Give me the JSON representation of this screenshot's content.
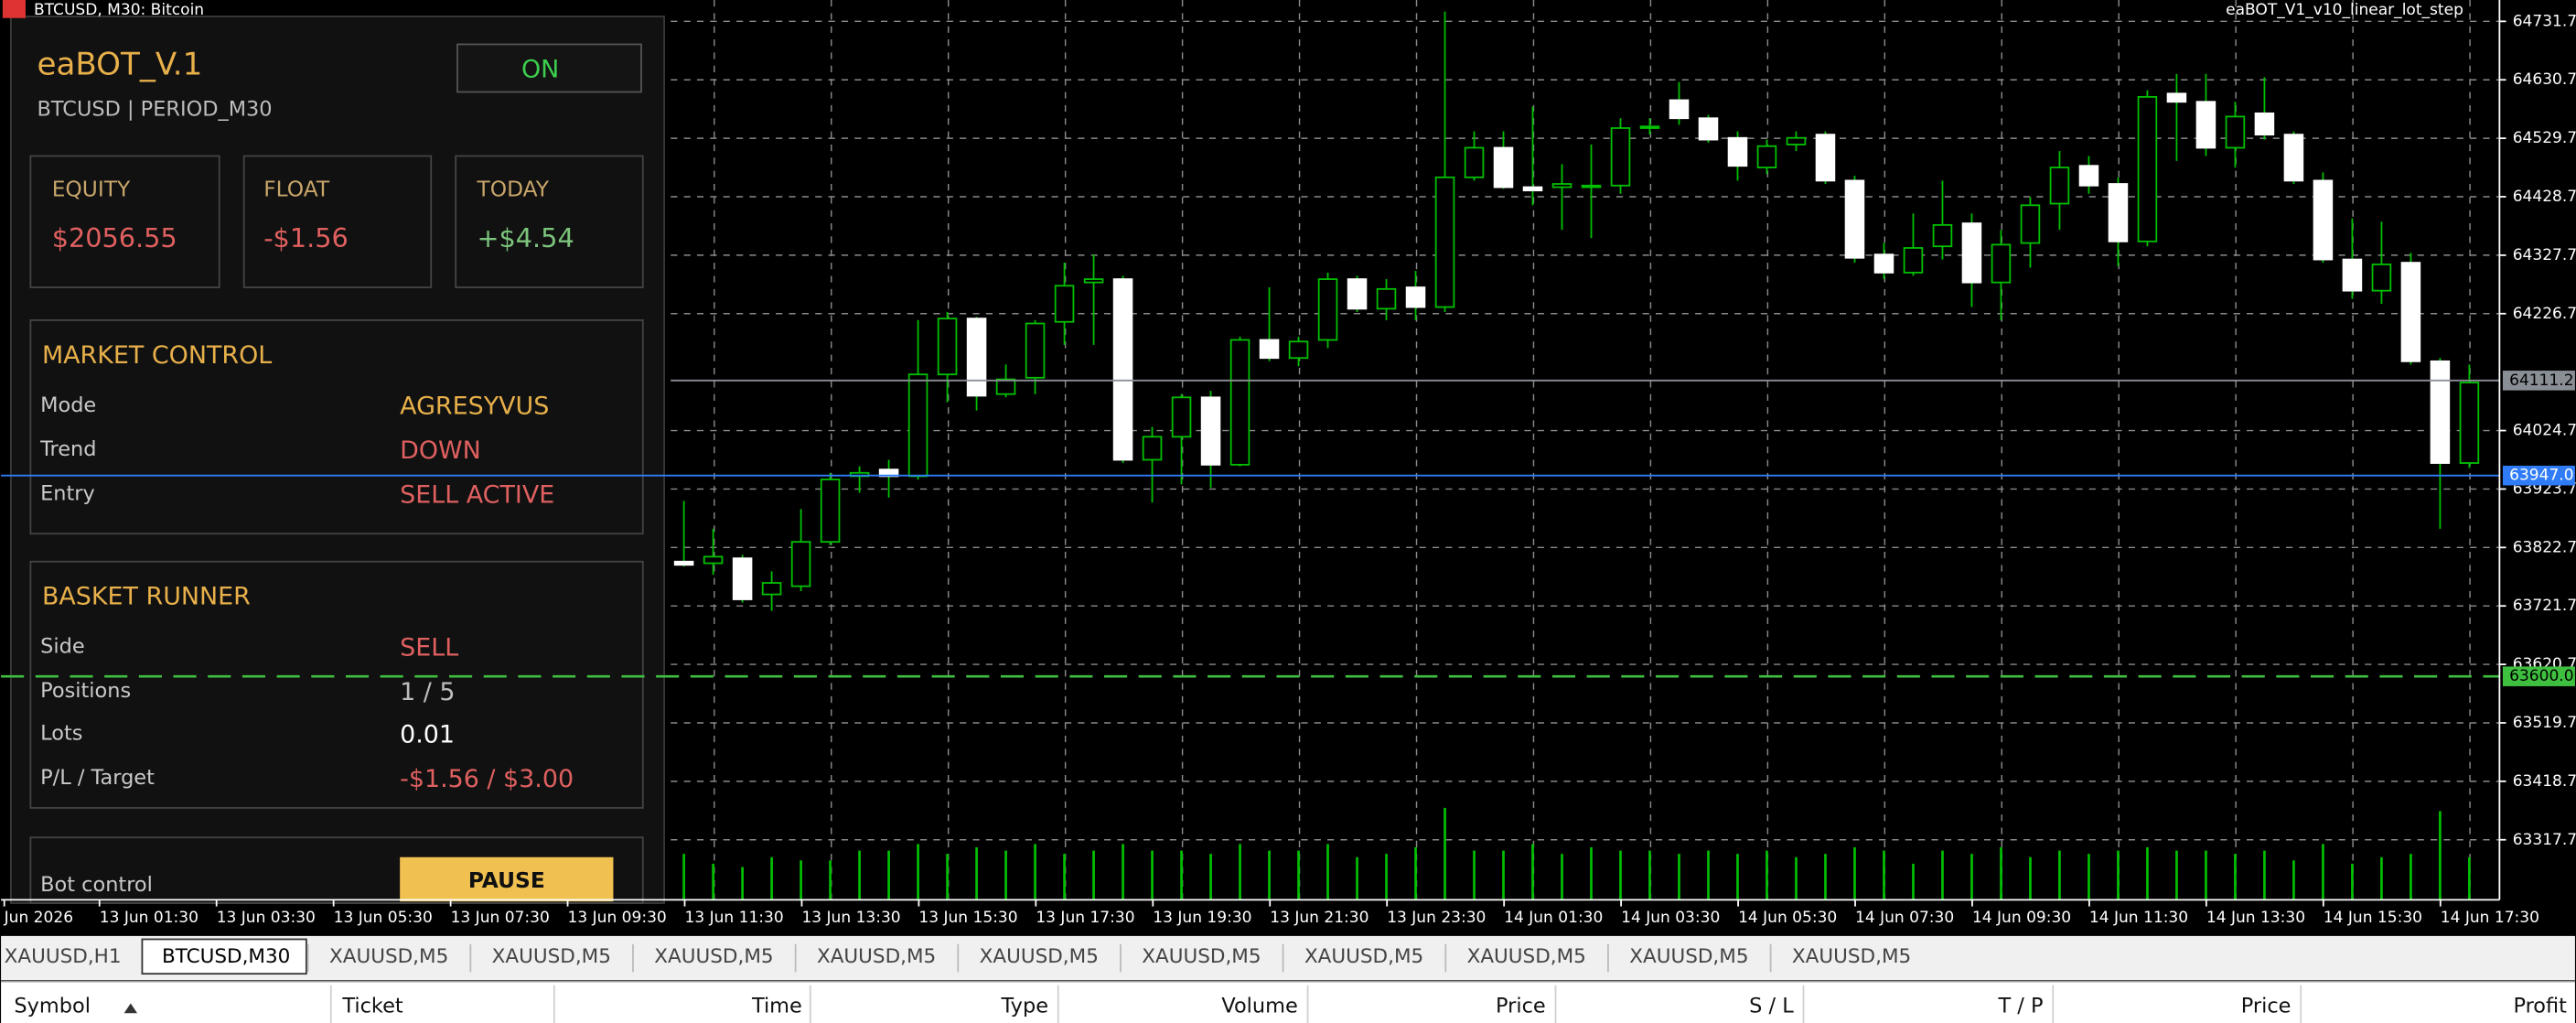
{
  "window": {
    "title": "BTCUSD, M30:  Bitcoin",
    "expert": "eaBOT_V1_v10_linear_lot_step"
  },
  "panel": {
    "name": "eaBOT_V.1",
    "subtitle": "BTCUSD  |  PERIOD_M30",
    "status": "ON",
    "stats": [
      {
        "label": "EQUITY",
        "value": "$2056.55"
      },
      {
        "label": "FLOAT",
        "value": "-$1.56"
      },
      {
        "label": "TODAY",
        "value": "+$4.54"
      }
    ],
    "market_control": {
      "title": "MARKET CONTROL",
      "rows": [
        [
          "Mode",
          "AGRESYVUS"
        ],
        [
          "Trend",
          "DOWN"
        ],
        [
          "Entry",
          "SELL ACTIVE"
        ]
      ]
    },
    "basket_runner": {
      "title": "BASKET RUNNER",
      "rows": [
        [
          "Side",
          "SELL"
        ],
        [
          "Positions",
          "1 / 5"
        ],
        [
          "Lots",
          "0.01"
        ],
        [
          "P/L / Target",
          "-$1.56 / $3.00"
        ]
      ]
    },
    "bot_control": {
      "label": "Bot control",
      "button": "PAUSE"
    }
  },
  "chart_data": {
    "type": "candlestick",
    "x_labels": [
      "Jun 2026",
      "13 Jun 01:30",
      "13 Jun 03:30",
      "13 Jun 05:30",
      "13 Jun 07:30",
      "13 Jun 09:30",
      "13 Jun 11:30",
      "13 Jun 13:30",
      "13 Jun 15:30",
      "13 Jun 17:30",
      "13 Jun 19:30",
      "13 Jun 21:30",
      "13 Jun 23:30",
      "14 Jun 01:30",
      "14 Jun 03:30",
      "14 Jun 05:30",
      "14 Jun 07:30",
      "14 Jun 09:30",
      "14 Jun 11:30",
      "14 Jun 13:30",
      "14 Jun 15:30",
      "14 Jun 17:30"
    ],
    "open": [
      63798.3,
      63795.5,
      63804.0,
      63741.6,
      63755.8,
      63832.4,
      63945.9,
      63957.3,
      63945.9,
      64121.7,
      64218.2,
      64087.7,
      64116.0,
      64212.5,
      64280.6,
      64286.3,
      63974.2,
      64014.0,
      64082.0,
      63965.7,
      64181.3,
      64150.1,
      64181.3,
      64286.3,
      64235.2,
      64272.1,
      64238.1,
      64462.2,
      64513.3,
      64445.2,
      64445.2,
      64445.2,
      64448.0,
      64547.3,
      64595.5,
      64564.3,
      64530.3,
      64479.2,
      64518.9,
      64536.0,
      64456.5,
      64328.8,
      64297.6,
      64343.0,
      64382.7,
      64280.6,
      64348.7,
      64416.8,
      64482.1,
      64450.8,
      64351.5,
      64606.9,
      64592.7,
      64513.3,
      64572.8,
      64536.0,
      64456.5,
      64320.3,
      64266.4,
      64314.7,
      64144.4,
      63968.6
    ],
    "high": [
      63903.2,
      63855.0,
      63809.7,
      63781.4,
      63889.1,
      63951.6,
      63962.9,
      63974.2,
      64215.4,
      64229.6,
      64221.0,
      64138.8,
      64215.4,
      64314.7,
      64328.8,
      64292.0,
      64031.0,
      64087.7,
      64093.4,
      64187.0,
      64272.1,
      64187.0,
      64297.6,
      64292.0,
      64286.3,
      64300.5,
      64748.7,
      64541.6,
      64541.6,
      64584.2,
      64484.9,
      64518.9,
      64564.3,
      64564.3,
      64626.7,
      64570.0,
      64541.6,
      64527.4,
      64541.6,
      64541.6,
      64465.0,
      64348.7,
      64399.8,
      64456.5,
      64399.8,
      64371.4,
      64428.2,
      64507.6,
      64499.1,
      64462.2,
      64612.5,
      64640.9,
      64640.9,
      64592.7,
      64635.2,
      64541.6,
      64470.7,
      64391.3,
      64385.6,
      64331.7,
      64150.1,
      64138.8
    ],
    "low": [
      63789.8,
      63775.7,
      63727.4,
      63713.2,
      63747.3,
      63826.7,
      63917.5,
      63909.0,
      63940.2,
      64073.5,
      64059.4,
      64082.0,
      64087.7,
      64172.8,
      64172.8,
      63968.6,
      63900.4,
      63931.7,
      63926.0,
      63962.9,
      64144.4,
      64135.9,
      64167.1,
      64229.6,
      64215.4,
      64215.4,
      64229.6,
      64456.5,
      64442.3,
      64414.0,
      64371.4,
      64357.2,
      64433.8,
      64536.0,
      64553.0,
      64521.8,
      64456.5,
      64467.9,
      64507.6,
      64450.8,
      64314.7,
      64286.3,
      64292.0,
      64320.3,
      64238.1,
      64215.4,
      64306.2,
      64371.4,
      64433.8,
      64309.0,
      64343.0,
      64490.6,
      64499.1,
      64479.2,
      64527.4,
      64450.8,
      64314.7,
      64252.2,
      64243.7,
      64138.8,
      63855.0,
      63960.1
    ],
    "close": [
      63792.7,
      63806.8,
      63733.1,
      63761.5,
      63832.4,
      63940.2,
      63951.6,
      63945.9,
      64121.7,
      64218.2,
      64084.9,
      64113.2,
      64209.7,
      64274.9,
      64286.3,
      63974.2,
      64014.0,
      64082.0,
      63965.7,
      64181.3,
      64150.1,
      64178.5,
      64286.3,
      64235.2,
      64269.3,
      64238.1,
      64462.2,
      64513.3,
      64445.2,
      64439.5,
      64450.8,
      64448.0,
      64547.3,
      64550.1,
      64564.3,
      64527.4,
      64482.1,
      64516.1,
      64530.3,
      64456.5,
      64323.2,
      64297.6,
      64340.2,
      64379.9,
      64280.6,
      64345.9,
      64414.0,
      64479.2,
      64448.0,
      64351.5,
      64601.2,
      64592.7,
      64513.3,
      64567.2,
      64536.0,
      64456.5,
      64320.3,
      64266.4,
      64311.8,
      64144.4,
      63968.6,
      64107.6
    ],
    "volume": [
      28,
      22,
      20,
      26,
      24,
      24,
      30,
      30,
      34,
      28,
      32,
      30,
      34,
      28,
      30,
      34,
      30,
      30,
      28,
      34,
      30,
      30,
      34,
      26,
      28,
      32,
      56,
      30,
      30,
      34,
      28,
      32,
      30,
      30,
      28,
      30,
      28,
      30,
      26,
      28,
      32,
      30,
      22,
      30,
      28,
      32,
      26,
      30,
      28,
      30,
      32,
      30,
      30,
      28,
      30,
      24,
      34,
      22,
      26,
      28,
      54,
      26
    ],
    "ylim": [
      63213.9,
      64768.6
    ],
    "yticks": [
      64731.7,
      64630.7,
      64529.7,
      64428.7,
      64327.7,
      64226.7,
      64024.7,
      63923.7,
      63822.7,
      63721.7,
      63620.7,
      63519.7,
      63418.7,
      63317.7
    ],
    "price_lines": [
      {
        "value": 64111.2,
        "color": "#8a8f96"
      },
      {
        "value": {
          "value": 63947,
          "label": "63947.0"
        },
        "color": "#2f7cf6"
      },
      {
        "value": {
          "value": 63600,
          "label": "63600.0"
        },
        "color": "#3fbf3f"
      }
    ],
    "grid": true,
    "up_color": "#00c000",
    "down_color": "#ffffff"
  },
  "tabs": [
    "XAUUSD,H1",
    "BTCUSD,M30",
    "XAUUSD,M5",
    "XAUUSD,M5",
    "XAUUSD,M5",
    "XAUUSD,M5",
    "XAUUSD,M5",
    "XAUUSD,M5",
    "XAUUSD,M5",
    "XAUUSD,M5",
    "XAUUSD,M5",
    "XAUUSD,M5"
  ],
  "table": {
    "columns": [
      "Symbol",
      "Ticket",
      "Time",
      "Type",
      "Volume",
      "Price",
      "S / L",
      "T / P",
      "Price",
      "Profit"
    ]
  }
}
